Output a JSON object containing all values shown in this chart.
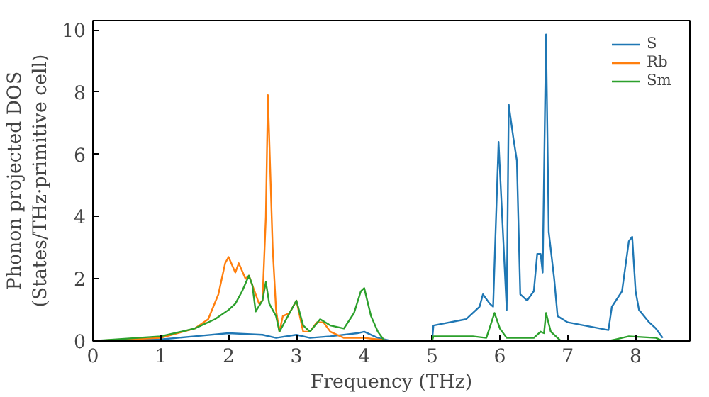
{
  "chart_data": {
    "type": "line",
    "xlabel": "Frequency (THz)",
    "ylabel": "Phonon projected DOS\n(States/THz·primitive cell)",
    "xlim": [
      0,
      8.8
    ],
    "ylim": [
      0,
      10.3
    ],
    "xticks": [
      0,
      1,
      2,
      3,
      4,
      5,
      6,
      7,
      8
    ],
    "yticks": [
      0,
      2,
      4,
      6,
      8,
      10
    ],
    "grid": false,
    "legend": "top right",
    "series": [
      {
        "name": "S",
        "color": "#1f77b4",
        "x": [
          0,
          1,
          1.5,
          2,
          2.5,
          2.7,
          3.0,
          3.2,
          3.5,
          3.9,
          4.0,
          4.2,
          4.4,
          5.0,
          5.02,
          5.5,
          5.7,
          5.75,
          5.85,
          5.9,
          5.98,
          6.1,
          6.13,
          6.2,
          6.25,
          6.3,
          6.4,
          6.5,
          6.55,
          6.6,
          6.63,
          6.68,
          6.72,
          6.8,
          6.85,
          7.0,
          7.6,
          7.65,
          7.8,
          7.9,
          7.95,
          8.0,
          8.05,
          8.2,
          8.3,
          8.4
        ],
        "values": [
          0,
          0.05,
          0.15,
          0.25,
          0.2,
          0.1,
          0.2,
          0.1,
          0.15,
          0.25,
          0.3,
          0.1,
          0,
          0,
          0.5,
          0.7,
          1.1,
          1.5,
          1.2,
          1.1,
          6.4,
          1.0,
          7.6,
          6.5,
          5.8,
          1.5,
          1.3,
          1.6,
          2.8,
          2.8,
          2.2,
          9.85,
          3.5,
          2.0,
          0.8,
          0.6,
          0.35,
          1.1,
          1.6,
          3.2,
          3.35,
          1.6,
          1.0,
          0.6,
          0.4,
          0.1
        ]
      },
      {
        "name": "Rb",
        "color": "#ff7f0e",
        "x": [
          0,
          1,
          1.5,
          1.7,
          1.85,
          1.95,
          2.0,
          2.1,
          2.15,
          2.25,
          2.3,
          2.45,
          2.5,
          2.55,
          2.58,
          2.65,
          2.7,
          2.75,
          2.8,
          2.9,
          3.0,
          3.1,
          3.2,
          3.3,
          3.4,
          3.5,
          3.7,
          4.0,
          4.2,
          4.4
        ],
        "values": [
          0,
          0.1,
          0.4,
          0.7,
          1.5,
          2.5,
          2.7,
          2.2,
          2.5,
          2.0,
          2.1,
          1.2,
          1.3,
          4.0,
          7.9,
          3.0,
          1.0,
          0.3,
          0.8,
          0.9,
          1.3,
          0.3,
          0.3,
          0.6,
          0.6,
          0.3,
          0.1,
          0.1,
          0.05,
          0
        ]
      },
      {
        "name": "Sm",
        "color": "#2ca02c",
        "x": [
          0,
          1,
          1.5,
          1.8,
          2.0,
          2.1,
          2.2,
          2.3,
          2.35,
          2.4,
          2.5,
          2.55,
          2.6,
          2.7,
          2.75,
          2.9,
          3.0,
          3.1,
          3.2,
          3.35,
          3.5,
          3.7,
          3.85,
          3.95,
          4.0,
          4.1,
          4.2,
          4.3,
          5.0,
          5.02,
          5.6,
          5.8,
          5.92,
          6.0,
          6.1,
          6.5,
          6.6,
          6.65,
          6.68,
          6.75,
          6.9,
          7.6,
          7.7,
          7.9,
          8.3,
          8.4
        ],
        "values": [
          0,
          0.15,
          0.4,
          0.7,
          1.0,
          1.2,
          1.6,
          2.1,
          1.8,
          0.95,
          1.3,
          1.9,
          1.2,
          0.8,
          0.3,
          0.9,
          1.3,
          0.5,
          0.3,
          0.7,
          0.5,
          0.4,
          0.9,
          1.6,
          1.7,
          0.8,
          0.3,
          0,
          0,
          0.15,
          0.15,
          0.1,
          0.9,
          0.4,
          0.1,
          0.1,
          0.3,
          0.25,
          0.9,
          0.3,
          0,
          0,
          0.05,
          0.15,
          0.1,
          0
        ]
      }
    ]
  }
}
